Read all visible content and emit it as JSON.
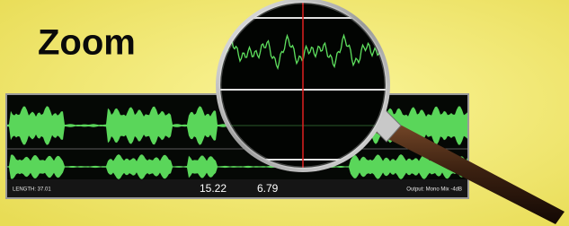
{
  "header": {
    "title": "Zoom"
  },
  "status_bar": {
    "length": "LENGTH: 37.01",
    "start": "15.22",
    "end": "6.79",
    "output": "Output: Mono Mix -4dB"
  }
}
